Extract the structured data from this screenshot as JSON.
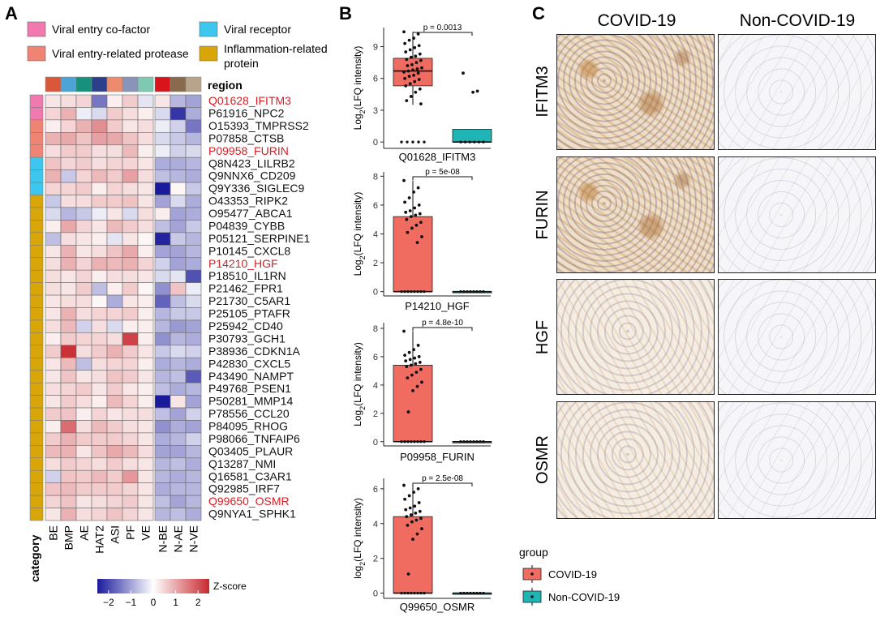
{
  "panel_labels": {
    "a": "A",
    "b": "B",
    "c": "C"
  },
  "category_legend": [
    {
      "label": "Viral entry co-factor",
      "color": "#f07ab0"
    },
    {
      "label": "Viral entry-related protease",
      "color": "#f08474"
    },
    {
      "label": "Viral receptor",
      "color": "#3ec7ee"
    },
    {
      "label": "Inflammation-related protein",
      "color": "#d9a60a"
    }
  ],
  "heatmap": {
    "region_title": "region",
    "category_axis_title": "category",
    "columns": [
      "BE",
      "BMP",
      "AE",
      "HAT2",
      "ASI",
      "PF",
      "VE",
      "N-BE",
      "N-AE",
      "N-VE"
    ],
    "column_colors": [
      "#d9583a",
      "#4ba3d6",
      "#17907d",
      "#2c3f8a",
      "#ee8b6e",
      "#8a93b8",
      "#7fc9b2",
      "#d9141b",
      "#8a6a4f",
      "#b8a48b"
    ],
    "rows": [
      {
        "label": "Q01628_IFITM3",
        "highlight": true,
        "category": 0
      },
      {
        "label": "P61916_NPC2",
        "highlight": false,
        "category": 0
      },
      {
        "label": "O15393_TMPRSS2",
        "highlight": false,
        "category": 1
      },
      {
        "label": "P07858_CTSB",
        "highlight": false,
        "category": 1
      },
      {
        "label": "P09958_FURIN",
        "highlight": true,
        "category": 1
      },
      {
        "label": "Q8N423_LILRB2",
        "highlight": false,
        "category": 2
      },
      {
        "label": "Q9NNX6_CD209",
        "highlight": false,
        "category": 2
      },
      {
        "label": "Q9Y336_SIGLEC9",
        "highlight": false,
        "category": 2
      },
      {
        "label": "O43353_RIPK2",
        "highlight": false,
        "category": 3
      },
      {
        "label": "O95477_ABCA1",
        "highlight": false,
        "category": 3
      },
      {
        "label": "P04839_CYBB",
        "highlight": false,
        "category": 3
      },
      {
        "label": "P05121_SERPINE1",
        "highlight": false,
        "category": 3
      },
      {
        "label": "P10145_CXCL8",
        "highlight": false,
        "category": 3
      },
      {
        "label": "P14210_HGF",
        "highlight": true,
        "category": 3
      },
      {
        "label": "P18510_IL1RN",
        "highlight": false,
        "category": 3
      },
      {
        "label": "P21462_FPR1",
        "highlight": false,
        "category": 3
      },
      {
        "label": "P21730_C5AR1",
        "highlight": false,
        "category": 3
      },
      {
        "label": "P25105_PTAFR",
        "highlight": false,
        "category": 3
      },
      {
        "label": "P25942_CD40",
        "highlight": false,
        "category": 3
      },
      {
        "label": "P30793_GCH1",
        "highlight": false,
        "category": 3
      },
      {
        "label": "P38936_CDKN1A",
        "highlight": false,
        "category": 3
      },
      {
        "label": "P42830_CXCL5",
        "highlight": false,
        "category": 3
      },
      {
        "label": "P43490_NAMPT",
        "highlight": false,
        "category": 3
      },
      {
        "label": "P49768_PSEN1",
        "highlight": false,
        "category": 3
      },
      {
        "label": "P50281_MMP14",
        "highlight": false,
        "category": 3
      },
      {
        "label": "P78556_CCL20",
        "highlight": false,
        "category": 3
      },
      {
        "label": "P84095_RHOG",
        "highlight": false,
        "category": 3
      },
      {
        "label": "P98066_TNFAIP6",
        "highlight": false,
        "category": 3
      },
      {
        "label": "Q03405_PLAUR",
        "highlight": false,
        "category": 3
      },
      {
        "label": "Q13287_NMI",
        "highlight": false,
        "category": 3
      },
      {
        "label": "Q16581_C3AR1",
        "highlight": false,
        "category": 3
      },
      {
        "label": "Q92985_IRF7",
        "highlight": false,
        "category": 3
      },
      {
        "label": "Q99650_OSMR",
        "highlight": true,
        "category": 3
      },
      {
        "label": "Q9NYA1_SPHK1",
        "highlight": false,
        "category": 3
      }
    ],
    "values": [
      [
        0.3,
        0.4,
        0.5,
        -1.5,
        0.2,
        0.6,
        -0.3,
        0.3,
        -0.8,
        -1.0
      ],
      [
        0.5,
        0.9,
        -0.2,
        -0.4,
        0.6,
        0.4,
        0.2,
        -0.4,
        -2.2,
        -0.9
      ],
      [
        0.2,
        0.5,
        0.9,
        1.3,
        0.6,
        0.3,
        0.4,
        -0.2,
        -0.5,
        -1.5
      ],
      [
        0.9,
        1.0,
        0.7,
        1.1,
        1.0,
        0.7,
        0.4,
        -0.4,
        -0.6,
        -0.8
      ],
      [
        0.4,
        0.6,
        0.6,
        0.4,
        0.4,
        0.8,
        0.2,
        -0.2,
        -0.5,
        -0.4
      ],
      [
        0.7,
        0.5,
        0.6,
        0.4,
        0.5,
        0.5,
        0.3,
        -0.9,
        -0.9,
        -0.8
      ],
      [
        0.9,
        -0.6,
        0.5,
        0.8,
        0.6,
        1.1,
        0.4,
        -0.7,
        -0.8,
        -0.9
      ],
      [
        0.5,
        0.5,
        0.6,
        0.2,
        0.5,
        0.4,
        0.3,
        -2.6,
        0.1,
        -0.6
      ],
      [
        -0.6,
        0.4,
        0.4,
        0.6,
        0.6,
        0.7,
        0.3,
        -1.0,
        -0.4,
        -0.9
      ],
      [
        -0.4,
        -0.8,
        -0.6,
        -0.2,
        0.3,
        -0.4,
        0.4,
        0.2,
        -1.0,
        -0.9
      ],
      [
        0.2,
        1.0,
        0.5,
        0.3,
        0.8,
        0.6,
        0.4,
        -0.7,
        -1.0,
        -0.6
      ],
      [
        -0.7,
        0.4,
        0.3,
        0.2,
        -0.3,
        0.3,
        0.1,
        -2.4,
        -0.6,
        -0.8
      ],
      [
        0.3,
        0.9,
        0.3,
        0.4,
        0.7,
        1.0,
        0.2,
        -1.0,
        -1.0,
        -0.8
      ],
      [
        0.4,
        0.9,
        0.5,
        0.9,
        0.8,
        0.9,
        0.5,
        -0.5,
        -1.0,
        -0.9
      ],
      [
        0.4,
        0.3,
        0.5,
        0.2,
        0.4,
        0.4,
        0.3,
        -0.4,
        -0.3,
        -1.9
      ],
      [
        0.4,
        0.3,
        0.6,
        -0.7,
        0.2,
        0.6,
        0.1,
        -1.2,
        0.7,
        -0.2
      ],
      [
        0.3,
        0.4,
        0.4,
        0.1,
        -0.9,
        0.3,
        0.2,
        -1.7,
        -0.7,
        -0.4
      ],
      [
        0.3,
        0.9,
        0.4,
        0.5,
        0.5,
        0.6,
        0.2,
        -0.8,
        -0.6,
        -0.6
      ],
      [
        0.4,
        0.8,
        -0.5,
        0.4,
        -0.4,
        0.2,
        0.2,
        -0.8,
        -1.1,
        -1.0
      ],
      [
        0.2,
        0.6,
        0.5,
        0.5,
        0.4,
        2.2,
        0.2,
        -1.2,
        -0.8,
        -0.9
      ],
      [
        0.6,
        2.4,
        0.4,
        0.6,
        0.9,
        0.6,
        0.3,
        -0.6,
        -0.4,
        -0.5
      ],
      [
        0.3,
        0.8,
        -0.7,
        0.4,
        0.5,
        0.5,
        0.2,
        -0.9,
        -0.8,
        -0.9
      ],
      [
        0.3,
        0.7,
        0.3,
        0.4,
        0.7,
        0.6,
        0.3,
        -0.8,
        -0.7,
        -1.8
      ],
      [
        0.4,
        0.5,
        0.6,
        0.3,
        0.6,
        0.3,
        0.2,
        -0.7,
        -0.9,
        -0.8
      ],
      [
        0.3,
        0.6,
        0.4,
        0.2,
        0.8,
        0.5,
        0.2,
        -2.5,
        0.3,
        -1.0
      ],
      [
        0.6,
        0.7,
        0.2,
        0.5,
        0.3,
        0.4,
        0.4,
        -0.7,
        -1.0,
        -0.5
      ],
      [
        0.2,
        1.7,
        0.4,
        0.8,
        0.6,
        0.4,
        0.3,
        -1.2,
        -0.9,
        -1.0
      ],
      [
        0.6,
        0.9,
        0.6,
        0.6,
        0.6,
        0.5,
        0.3,
        -0.9,
        -0.8,
        -0.5
      ],
      [
        0.8,
        0.9,
        0.3,
        0.7,
        1.0,
        0.8,
        0.4,
        -1.0,
        -1.0,
        -0.8
      ],
      [
        0.4,
        0.6,
        0.5,
        0.4,
        0.6,
        0.4,
        0.3,
        -0.8,
        -0.7,
        -0.9
      ],
      [
        -0.5,
        0.7,
        0.6,
        0.8,
        0.6,
        1.2,
        0.3,
        -0.8,
        -0.9,
        -0.8
      ],
      [
        0.7,
        0.8,
        0.6,
        0.6,
        0.6,
        0.5,
        0.3,
        -0.9,
        -0.8,
        -0.8
      ],
      [
        0.5,
        0.7,
        0.3,
        0.4,
        0.5,
        0.6,
        0.3,
        -0.7,
        -1.0,
        -0.8
      ],
      [
        0.3,
        0.9,
        0.4,
        0.5,
        0.7,
        0.5,
        0.3,
        -0.8,
        -0.7,
        -0.9
      ]
    ],
    "colorbar": {
      "title": "Z-score",
      "ticks": [
        "−2",
        "−1",
        "0",
        "1",
        "2"
      ],
      "low": "#1a1a9c",
      "mid": "#ffffff",
      "high": "#c8282e",
      "min": -2.5,
      "max": 2.5
    }
  },
  "chart_data": [
    {
      "type": "box",
      "gene": "Q01628_IFITM3",
      "pvalue": "p = 0.0013",
      "ylabel": "Log2(LFQ intensity)",
      "ylim": [
        -0.6,
        10.8
      ],
      "yticks": [
        0,
        3,
        6,
        9
      ],
      "groups": [
        {
          "name": "COVID-19",
          "q1": 5.3,
          "median": 6.7,
          "q3": 7.9,
          "whisker_low": 3.5,
          "whisker_high": 10.4,
          "zeros": 5,
          "points": [
            10.4,
            10.2,
            9.8,
            9.6,
            9.3,
            9.1,
            8.9,
            8.7,
            8.5,
            8.3,
            8.1,
            8.0,
            7.8,
            7.7,
            7.5,
            7.3,
            7.2,
            7.0,
            6.9,
            6.8,
            6.7,
            6.6,
            6.5,
            6.3,
            6.2,
            6.0,
            5.9,
            5.7,
            5.5,
            5.3,
            5.0,
            4.7,
            4.3,
            3.9,
            3.6
          ]
        },
        {
          "name": "Non-COVID-19",
          "q1": 0,
          "median": 0,
          "q3": 1.2,
          "whisker_low": 0,
          "whisker_high": 1.2,
          "zeros": 6,
          "points": [
            6.5,
            4.8,
            4.7
          ]
        }
      ]
    },
    {
      "type": "box",
      "gene": "P14210_HGF",
      "pvalue": "p = 5e-08",
      "ylabel": "Log2(LFQ intensity)",
      "ylim": [
        -0.3,
        8.3
      ],
      "yticks": [
        0,
        2,
        4,
        6,
        8
      ],
      "groups": [
        {
          "name": "COVID-19",
          "q1": 0,
          "median": 0,
          "q3": 5.2,
          "whisker_low": 0,
          "whisker_high": 7.7,
          "zeros": 8,
          "points": [
            7.7,
            7.2,
            6.9,
            6.5,
            6.2,
            6.0,
            5.8,
            5.6,
            5.5,
            5.4,
            5.3,
            5.2,
            5.0,
            4.8,
            4.6,
            4.4,
            4.1,
            3.8,
            3.4
          ]
        },
        {
          "name": "Non-COVID-19",
          "q1": 0,
          "median": 0,
          "q3": 0,
          "whisker_low": 0,
          "whisker_high": 0,
          "zeros": 8,
          "points": []
        }
      ]
    },
    {
      "type": "box",
      "gene": "P09958_FURIN",
      "pvalue": "p = 4.8e-10",
      "ylabel": "Log2(LFQ intensity)",
      "ylim": [
        -0.3,
        8.4
      ],
      "yticks": [
        0,
        2,
        4,
        6,
        8
      ],
      "groups": [
        {
          "name": "COVID-19",
          "q1": 0,
          "median": 0,
          "q3": 5.4,
          "whisker_low": 0,
          "whisker_high": 7.8,
          "zeros": 8,
          "points": [
            7.8,
            6.8,
            6.5,
            6.3,
            6.1,
            6.0,
            5.9,
            5.8,
            5.7,
            5.6,
            5.5,
            5.4,
            5.3,
            5.1,
            4.9,
            4.7,
            4.5,
            4.2,
            3.9,
            3.6,
            2.1
          ]
        },
        {
          "name": "Non-COVID-19",
          "q1": 0,
          "median": 0,
          "q3": 0,
          "whisker_low": 0,
          "whisker_high": 0,
          "zeros": 8,
          "points": []
        }
      ]
    },
    {
      "type": "box",
      "gene": "Q99650_OSMR",
      "pvalue": "p = 2.5e-08",
      "ylabel": "log2(LFQ intensity)",
      "ylim": [
        -0.3,
        6.6
      ],
      "yticks": [
        0,
        2,
        4,
        6
      ],
      "groups": [
        {
          "name": "COVID-19",
          "q1": 0,
          "median": 0,
          "q3": 4.4,
          "whisker_low": 0,
          "whisker_high": 6.2,
          "zeros": 8,
          "points": [
            6.2,
            6.0,
            5.8,
            5.6,
            5.4,
            5.2,
            5.0,
            4.9,
            4.8,
            4.7,
            4.6,
            4.5,
            4.4,
            4.3,
            4.2,
            4.1,
            3.9,
            3.7,
            3.4,
            3.1,
            1.1
          ]
        },
        {
          "name": "Non-COVID-19",
          "q1": 0,
          "median": 0,
          "q3": 0,
          "whisker_low": 0,
          "whisker_high": 0,
          "zeros": 8,
          "points": []
        }
      ]
    }
  ],
  "group_legend": {
    "title": "group",
    "items": [
      {
        "label": "COVID-19",
        "color": "#f06b60"
      },
      {
        "label": "Non-COVID-19",
        "color": "#1fb5b5"
      }
    ]
  },
  "ihc": {
    "column_headers": [
      "COVID-19",
      "Non-COVID-19"
    ],
    "row_labels": [
      "IFITM3",
      "FURIN",
      "HGF",
      "OSMR"
    ]
  }
}
